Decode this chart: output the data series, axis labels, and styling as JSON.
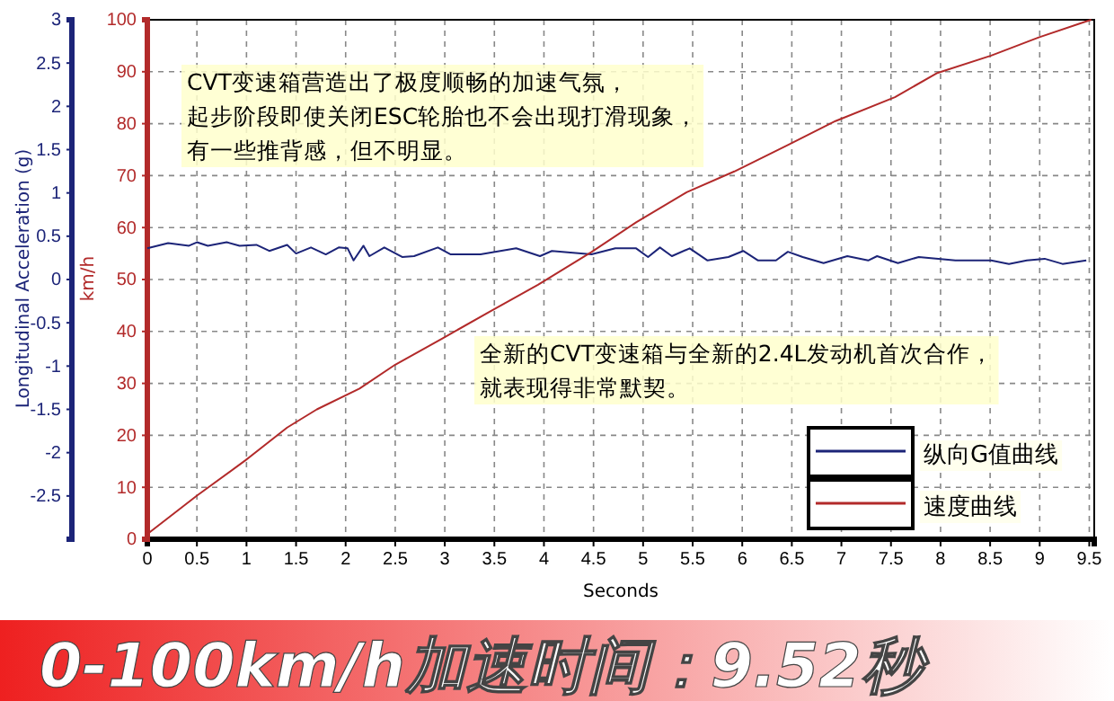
{
  "chart_data": {
    "type": "line",
    "title": "0-100km/h加速时间：9.52秒",
    "xlabel": "Seconds",
    "ylabel": "Longitudinal Acceleration (g)",
    "y2label": "km/h",
    "xlim": [
      0,
      9.55
    ],
    "xticks": [
      0,
      0.5,
      1,
      1.5,
      2,
      2.5,
      3,
      3.5,
      4,
      4.5,
      5,
      5.5,
      6,
      6.5,
      7,
      7.5,
      8,
      8.5,
      9,
      9.5
    ],
    "ylim": [
      -3,
      3
    ],
    "yticks": [
      3,
      2.5,
      2,
      1.5,
      1,
      0.5,
      0,
      -0.5,
      -1,
      -1.5,
      -2,
      -2.5
    ],
    "y2lim": [
      0,
      100
    ],
    "y2ticks": [
      0,
      10,
      20,
      30,
      40,
      50,
      60,
      70,
      80,
      90,
      100
    ],
    "grid": true,
    "legend": "bottom right",
    "annotations": [
      "CVT变速箱营造出了极度顺畅的加速气氛，起步阶段即使关闭ESC轮胎也不会出现打滑现象，有一些推背感，但不明显。",
      "全新的CVT变速箱与全新的2.4L发动机首次合作，就表现得非常默契。"
    ],
    "series": [
      {
        "name": "纵向G值曲线",
        "color": "#1c2478",
        "x": [
          0,
          0.21,
          0.42,
          0.5,
          0.61,
          0.8,
          0.93,
          1.1,
          1.23,
          1.41,
          1.5,
          1.65,
          1.8,
          1.93,
          2.02,
          2.08,
          2.18,
          2.24,
          2.39,
          2.57,
          2.69,
          2.93,
          3.06,
          3.36,
          3.72,
          3.96,
          4.08,
          4.48,
          4.72,
          4.93,
          5.05,
          5.17,
          5.29,
          5.47,
          5.65,
          5.86,
          6.01,
          6.16,
          6.34,
          6.46,
          6.61,
          6.82,
          7.06,
          7.27,
          7.36,
          7.57,
          7.78,
          8.15,
          8.51,
          8.69,
          8.87,
          9.05,
          9.23,
          9.47
        ],
        "values": [
          0.36,
          0.42,
          0.39,
          0.43,
          0.39,
          0.43,
          0.39,
          0.4,
          0.33,
          0.4,
          0.3,
          0.37,
          0.29,
          0.37,
          0.36,
          0.22,
          0.39,
          0.27,
          0.37,
          0.26,
          0.27,
          0.37,
          0.29,
          0.29,
          0.36,
          0.27,
          0.33,
          0.29,
          0.36,
          0.36,
          0.26,
          0.37,
          0.27,
          0.36,
          0.22,
          0.26,
          0.33,
          0.22,
          0.22,
          0.32,
          0.26,
          0.19,
          0.27,
          0.22,
          0.27,
          0.19,
          0.26,
          0.22,
          0.22,
          0.18,
          0.22,
          0.24,
          0.18,
          0.22
        ]
      },
      {
        "name": "速度曲线",
        "color": "#b22a2a",
        "axis": "y2",
        "x": [
          0,
          0.5,
          0.99,
          1.41,
          1.71,
          2.14,
          2.5,
          2.98,
          3.46,
          3.94,
          4.48,
          4.93,
          5.44,
          5.92,
          6.46,
          6.94,
          7.54,
          7.96,
          8.51,
          8.99,
          9.47,
          9.52
        ],
        "values": [
          1,
          8.4,
          15.2,
          21.5,
          25,
          29,
          33.6,
          38.7,
          43.9,
          49,
          55.3,
          61,
          66.8,
          70.8,
          75.9,
          80.5,
          85.1,
          89.7,
          93.1,
          96.6,
          99.7,
          100
        ]
      }
    ]
  }
}
